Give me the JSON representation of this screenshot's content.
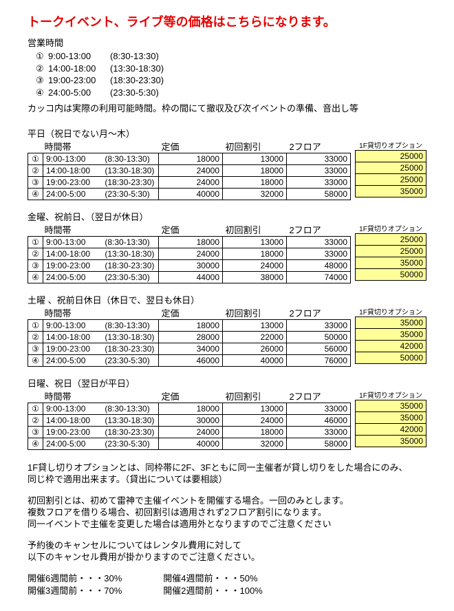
{
  "title": "トークイベント、ライブ等の価格はこちらになります。",
  "bizHoursLabel": "営業時間",
  "bizHours": [
    {
      "num": "①",
      "slot": "9:00-13:00",
      "actual": "(8:30-13:30)"
    },
    {
      "num": "②",
      "slot": "14:00-18:00",
      "actual": "(13:30-18:30)"
    },
    {
      "num": "③",
      "slot": "19:00-23:00",
      "actual": "(18:30-23:30)"
    },
    {
      "num": "④",
      "slot": "24:00-5:00",
      "actual": "(23:30-5:30)"
    }
  ],
  "bizHoursNote": "カッコ内は実際の利用可能時間。枠の間にて撤収及び次イベントの準備、音出し等",
  "headers": {
    "time": "時間帯",
    "price": "定価",
    "first": "初回割引",
    "twof": "2フロア",
    "opt": "1F貸切りオプション"
  },
  "sections": [
    {
      "title": "平日（祝日でない月～木）",
      "rows": [
        {
          "num": "①",
          "t1": "9:00-13:00",
          "t2": "(8:30-13:30)",
          "price": "18000",
          "first": "13000",
          "twof": "33000",
          "opt": "25000"
        },
        {
          "num": "②",
          "t1": "14:00-18:00",
          "t2": "(13:30-18:30)",
          "price": "24000",
          "first": "18000",
          "twof": "33000",
          "opt": "25000"
        },
        {
          "num": "③",
          "t1": "19:00-23:00",
          "t2": "(18:30-23:30)",
          "price": "24000",
          "first": "18000",
          "twof": "33000",
          "opt": "25000"
        },
        {
          "num": "④",
          "t1": "24:00-5:00",
          "t2": "(23:30-5:30)",
          "price": "40000",
          "first": "32000",
          "twof": "58000",
          "opt": "35000"
        }
      ]
    },
    {
      "title": "金曜、祝前日、（翌日が休日）",
      "rows": [
        {
          "num": "①",
          "t1": "9:00-13:00",
          "t2": "(8:30-13:30)",
          "price": "18000",
          "first": "13000",
          "twof": "33000",
          "opt": "25000"
        },
        {
          "num": "②",
          "t1": "14:00-18:00",
          "t2": "(13:30-18:30)",
          "price": "24000",
          "first": "18000",
          "twof": "33000",
          "opt": "25000"
        },
        {
          "num": "③",
          "t1": "19:00-23:00",
          "t2": "(18:30-23:30)",
          "price": "30000",
          "first": "24000",
          "twof": "48000",
          "opt": "35000"
        },
        {
          "num": "④",
          "t1": "24:00-5:00",
          "t2": "(23:30-5:30)",
          "price": "44000",
          "first": "38000",
          "twof": "74000",
          "opt": "50000"
        }
      ]
    },
    {
      "title": "土曜 、祝前日休日（休日で、翌日も休日）",
      "rows": [
        {
          "num": "①",
          "t1": "9:00-13:00",
          "t2": "(8:30-13:30)",
          "price": "18000",
          "first": "13000",
          "twof": "33000",
          "opt": "35000"
        },
        {
          "num": "②",
          "t1": "14:00-18:00",
          "t2": "(13:30-18:30)",
          "price": "28000",
          "first": "22000",
          "twof": "50000",
          "opt": "35000"
        },
        {
          "num": "③",
          "t1": "19:00-23:00",
          "t2": "(18:30-23:30)",
          "price": "34000",
          "first": "26000",
          "twof": "56000",
          "opt": "42000"
        },
        {
          "num": "④",
          "t1": "24:00-5:00",
          "t2": "(23:30-5:30)",
          "price": "46000",
          "first": "40000",
          "twof": "76000",
          "opt": "50000"
        }
      ]
    },
    {
      "title": "日曜、祝日（翌日が平日）",
      "rows": [
        {
          "num": "①",
          "t1": "9:00-13:00",
          "t2": "(8:30-13:30)",
          "price": "18000",
          "first": "13000",
          "twof": "33000",
          "opt": "35000"
        },
        {
          "num": "②",
          "t1": "14:00-18:00",
          "t2": "(13:30-18:30)",
          "price": "30000",
          "first": "24000",
          "twof": "46000",
          "opt": "35000"
        },
        {
          "num": "③",
          "t1": "19:00-23:00",
          "t2": "(18:30-23:30)",
          "price": "24000",
          "first": "18000",
          "twof": "33000",
          "opt": "42000"
        },
        {
          "num": "④",
          "t1": "24:00-5:00",
          "t2": "(23:30-5:30)",
          "price": "40000",
          "first": "32000",
          "twof": "58000",
          "opt": "35000"
        }
      ]
    }
  ],
  "explain": {
    "p1a": "1F貸し切りオプションとは、同枠帯に2F、3Fともに同一主催者が貸し切りをした場合にのみ、",
    "p1b": "同じ枠で適用出来ます。（貸出については要相談）",
    "p2a": "初回割引とは、初めて雷神で主催イベントを開催する場合。一回のみとします。",
    "p2b": "複数フロアを借りる場合、初回割引は適用されず2フロア割引になります。",
    "p2c": "同一イベントで主催を変更した場合は適用外となりますのでご注意ください",
    "p3a": "予約後のキャンセルについてはレンタル費用に対して",
    "p3b": "以下のキャンセル費用が掛かりますのでご注意ください。"
  },
  "cancel": {
    "col1": [
      "開催6週間前・・・30%",
      "開催3週間前・・・70%"
    ],
    "col2": [
      "開催4週間前・・・50%",
      "開催2週間前・・・100%"
    ]
  },
  "style": {
    "titleColor": "#e60000",
    "optBg": "#ffff99",
    "borderColor": "#000000",
    "bodyFontSize": 13
  }
}
